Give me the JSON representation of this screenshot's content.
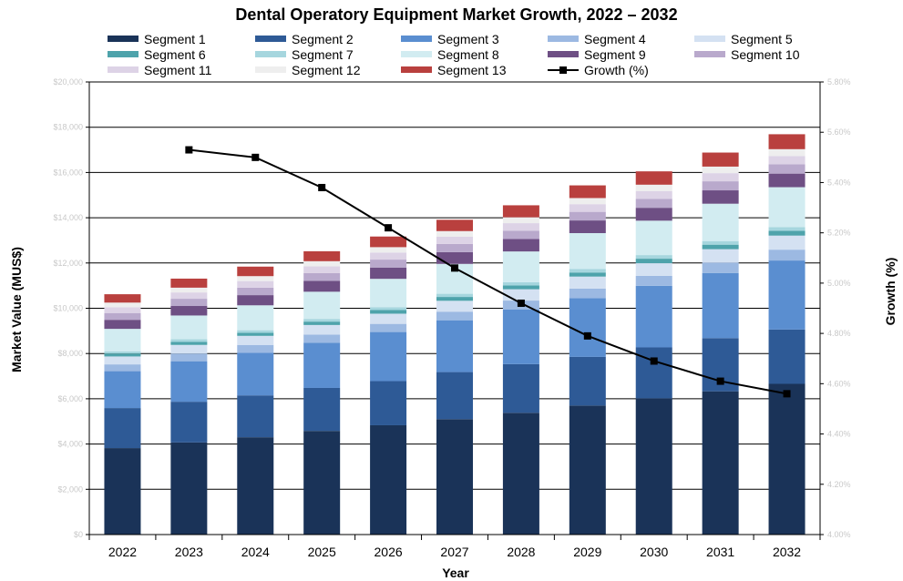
{
  "chart_data": {
    "type": "bar",
    "title": "Dental Operatory Equipment Market Growth, 2022 – 2032",
    "xlabel": "Year",
    "ylabel": "Market Value (MUS$)",
    "y2label": "Growth (%)",
    "categories": [
      "2022",
      "2023",
      "2024",
      "2025",
      "2026",
      "2027",
      "2028",
      "2029",
      "2030",
      "2031",
      "2032"
    ],
    "ylim": [
      0,
      20000
    ],
    "y_ticks": [
      "$0",
      "$2,000",
      "$4,000",
      "$6,000",
      "$8,000",
      "$10,000",
      "$12,000",
      "$14,000",
      "$16,000",
      "$18,000",
      "$20,000"
    ],
    "y2lim": [
      4.0,
      5.8
    ],
    "y2_ticks": [
      "4.00%",
      "4.20%",
      "4.40%",
      "4.60%",
      "4.80%",
      "5.00%",
      "5.20%",
      "5.40%",
      "5.60%",
      "5.80%"
    ],
    "grid": true,
    "legend": "top",
    "series": [
      {
        "name": "Segment 1",
        "color": "#1a3358",
        "values": [
          3820,
          4070,
          4300,
          4580,
          4830,
          5100,
          5380,
          5700,
          6020,
          6330,
          6660
        ]
      },
      {
        "name": "Segment 2",
        "color": "#2e5a96",
        "values": [
          1770,
          1800,
          1850,
          1900,
          1950,
          2080,
          2150,
          2150,
          2250,
          2350,
          2400
        ]
      },
      {
        "name": "Segment 3",
        "color": "#5a8ed0",
        "values": [
          1630,
          1790,
          1880,
          2000,
          2170,
          2290,
          2410,
          2600,
          2720,
          2880,
          3050
        ]
      },
      {
        "name": "Segment 4",
        "color": "#9cb9e2",
        "values": [
          300,
          340,
          350,
          360,
          360,
          380,
          400,
          420,
          440,
          460,
          480
        ]
      },
      {
        "name": "Segment 5",
        "color": "#d4e1f2",
        "values": [
          350,
          380,
          400,
          420,
          450,
          480,
          500,
          530,
          560,
          590,
          620
        ]
      },
      {
        "name": "Segment 6",
        "color": "#4ea3ab",
        "values": [
          130,
          140,
          140,
          150,
          160,
          170,
          170,
          180,
          200,
          200,
          210
        ]
      },
      {
        "name": "Segment 7",
        "color": "#a6d6de",
        "values": [
          100,
          110,
          110,
          120,
          130,
          140,
          140,
          150,
          160,
          160,
          170
        ]
      },
      {
        "name": "Segment 8",
        "color": "#d2ecf1",
        "values": [
          990,
          1050,
          1100,
          1200,
          1250,
          1320,
          1360,
          1590,
          1520,
          1650,
          1760
        ]
      },
      {
        "name": "Segment 9",
        "color": "#6e4f84",
        "values": [
          400,
          420,
          450,
          480,
          500,
          520,
          550,
          560,
          570,
          590,
          600
        ]
      },
      {
        "name": "Segment 10",
        "color": "#b9a9cc",
        "values": [
          300,
          320,
          330,
          340,
          350,
          360,
          370,
          380,
          390,
          400,
          410
        ]
      },
      {
        "name": "Segment 11",
        "color": "#ddd3e6",
        "values": [
          260,
          280,
          290,
          300,
          310,
          320,
          330,
          340,
          350,
          360,
          370
        ]
      },
      {
        "name": "Segment 12",
        "color": "#eeeeee",
        "values": [
          200,
          210,
          220,
          230,
          240,
          250,
          260,
          270,
          280,
          290,
          300
        ]
      },
      {
        "name": "Segment 13",
        "color": "#b9403e",
        "values": [
          370,
          400,
          420,
          440,
          470,
          500,
          530,
          560,
          590,
          620,
          660
        ]
      }
    ],
    "line_series": {
      "name": "Growth (%)",
      "color": "#000000",
      "values": [
        null,
        5.53,
        5.5,
        5.38,
        5.22,
        5.06,
        4.92,
        4.79,
        4.69,
        4.61,
        4.56
      ]
    }
  }
}
